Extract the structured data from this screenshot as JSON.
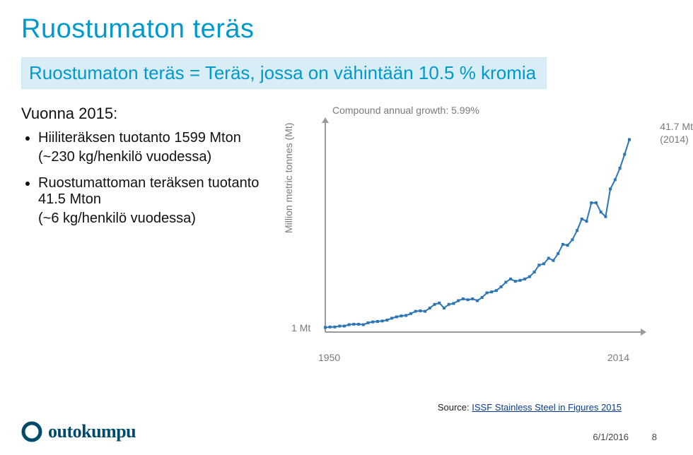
{
  "title": "Ruostumaton teräs",
  "subtitle": "Ruostumaton teräs = Teräs, jossa on vähintään 10.5 % kromia",
  "vuonna_label": "Vuonna 2015:",
  "bullets": [
    {
      "main": "Hiiliteräksen tuotanto 1599 Mton",
      "sub": "(~230 kg/henkilö vuodessa)"
    },
    {
      "main": "Ruostumattoman teräksen tuotanto 41.5 Mton",
      "sub": "(~6 kg/henkilö vuodessa)"
    }
  ],
  "chart": {
    "type": "line",
    "top_label": "Compound annual growth: 5.99%",
    "y_axis_label": "Million metric tonnes (Mt)",
    "x_start_label": "1950",
    "x_end_label": "2014",
    "y_1mt_label": "1 Mt",
    "final_label_top": "41.7 Mt",
    "final_label_sub": "(2014)",
    "xlim": [
      1950,
      2014
    ],
    "ylim": [
      0,
      45
    ],
    "series_color": "#2e75b6",
    "marker_size": 4,
    "line_width": 2,
    "axis_color": "#9a9a9a",
    "axis_width": 2,
    "arrow_size": 8,
    "background_color": "#ffffff",
    "data": [
      {
        "x": 1950,
        "y": 1.0
      },
      {
        "x": 1951,
        "y": 1.1
      },
      {
        "x": 1952,
        "y": 1.1
      },
      {
        "x": 1953,
        "y": 1.3
      },
      {
        "x": 1954,
        "y": 1.3
      },
      {
        "x": 1955,
        "y": 1.6
      },
      {
        "x": 1956,
        "y": 1.7
      },
      {
        "x": 1957,
        "y": 1.7
      },
      {
        "x": 1958,
        "y": 1.6
      },
      {
        "x": 1959,
        "y": 2.0
      },
      {
        "x": 1960,
        "y": 2.2
      },
      {
        "x": 1961,
        "y": 2.3
      },
      {
        "x": 1962,
        "y": 2.4
      },
      {
        "x": 1963,
        "y": 2.6
      },
      {
        "x": 1964,
        "y": 3.0
      },
      {
        "x": 1965,
        "y": 3.3
      },
      {
        "x": 1966,
        "y": 3.5
      },
      {
        "x": 1967,
        "y": 3.6
      },
      {
        "x": 1968,
        "y": 4.0
      },
      {
        "x": 1969,
        "y": 4.5
      },
      {
        "x": 1970,
        "y": 4.6
      },
      {
        "x": 1971,
        "y": 4.5
      },
      {
        "x": 1972,
        "y": 5.2
      },
      {
        "x": 1973,
        "y": 6.0
      },
      {
        "x": 1974,
        "y": 6.3
      },
      {
        "x": 1975,
        "y": 5.2
      },
      {
        "x": 1976,
        "y": 6.0
      },
      {
        "x": 1977,
        "y": 6.2
      },
      {
        "x": 1978,
        "y": 6.8
      },
      {
        "x": 1979,
        "y": 7.2
      },
      {
        "x": 1980,
        "y": 7.0
      },
      {
        "x": 1981,
        "y": 7.2
      },
      {
        "x": 1982,
        "y": 6.8
      },
      {
        "x": 1983,
        "y": 7.5
      },
      {
        "x": 1984,
        "y": 8.5
      },
      {
        "x": 1985,
        "y": 8.7
      },
      {
        "x": 1986,
        "y": 9.0
      },
      {
        "x": 1987,
        "y": 9.8
      },
      {
        "x": 1988,
        "y": 10.8
      },
      {
        "x": 1989,
        "y": 11.5
      },
      {
        "x": 1990,
        "y": 11.0
      },
      {
        "x": 1991,
        "y": 11.2
      },
      {
        "x": 1992,
        "y": 11.5
      },
      {
        "x": 1993,
        "y": 12.0
      },
      {
        "x": 1994,
        "y": 13.0
      },
      {
        "x": 1995,
        "y": 14.5
      },
      {
        "x": 1996,
        "y": 14.8
      },
      {
        "x": 1997,
        "y": 16.0
      },
      {
        "x": 1998,
        "y": 15.5
      },
      {
        "x": 1999,
        "y": 17.0
      },
      {
        "x": 2000,
        "y": 19.0
      },
      {
        "x": 2001,
        "y": 18.8
      },
      {
        "x": 2002,
        "y": 20.0
      },
      {
        "x": 2003,
        "y": 22.0
      },
      {
        "x": 2004,
        "y": 24.5
      },
      {
        "x": 2005,
        "y": 24.0
      },
      {
        "x": 2006,
        "y": 28.0
      },
      {
        "x": 2007,
        "y": 28.0
      },
      {
        "x": 2008,
        "y": 26.0
      },
      {
        "x": 2009,
        "y": 25.0
      },
      {
        "x": 2010,
        "y": 31.0
      },
      {
        "x": 2011,
        "y": 33.0
      },
      {
        "x": 2012,
        "y": 35.5
      },
      {
        "x": 2013,
        "y": 38.5
      },
      {
        "x": 2014,
        "y": 41.7
      }
    ]
  },
  "source_prefix": "Source: ",
  "source_link_text": "ISSF Stainless Steel in Figures 2015",
  "footer_date": "6/1/2016",
  "footer_page": "8",
  "logo_text": "outokumpu",
  "logo_color": "#004b6b",
  "colors": {
    "title": "#0099cc",
    "subtitle_bg": "#d9edf7",
    "subtitle_border": "#cde6f2",
    "subtitle_text": "#0099cc",
    "body_text": "#111111",
    "axis_label": "#7a7a7a"
  }
}
